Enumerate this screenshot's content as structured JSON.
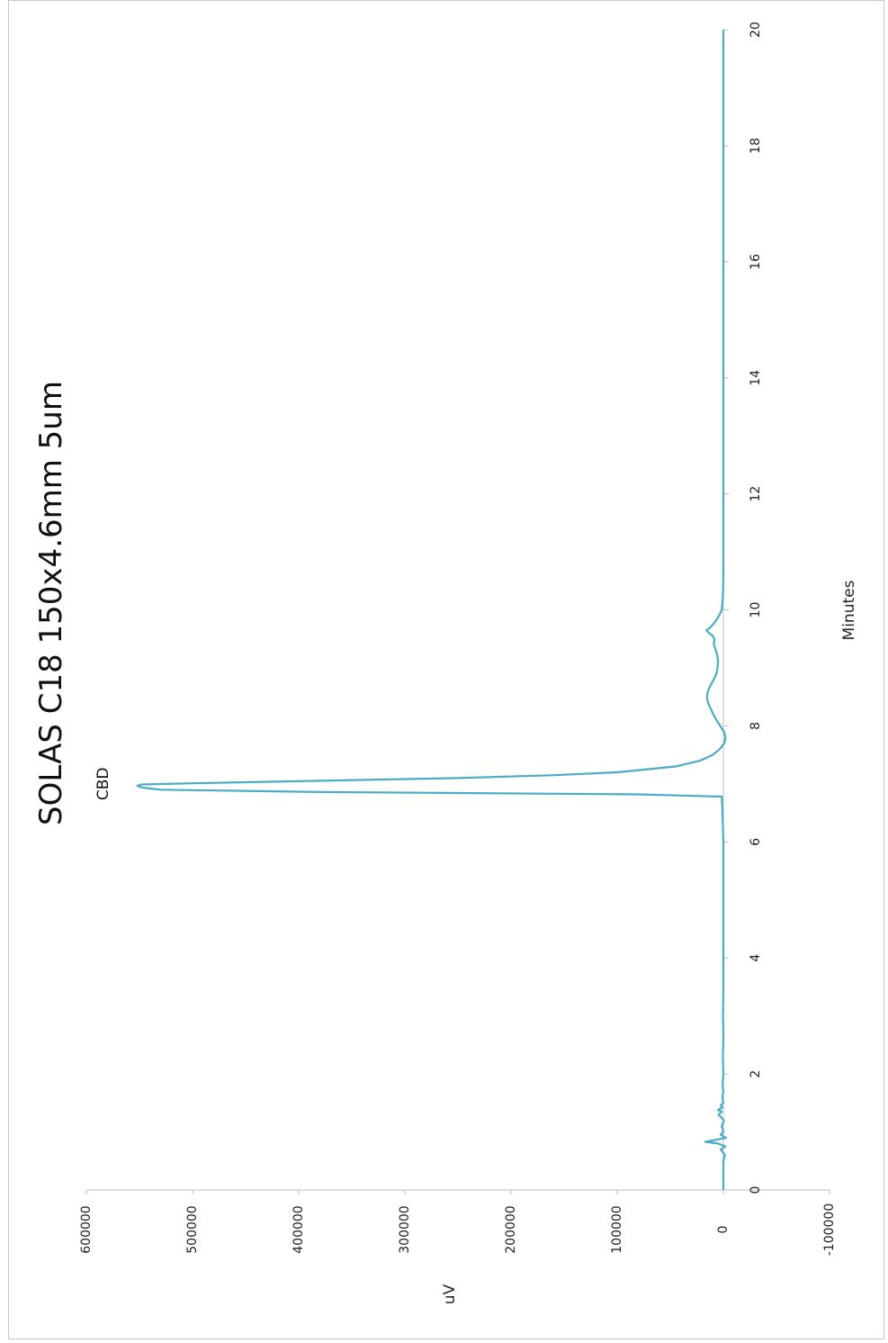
{
  "chart_data": {
    "type": "line",
    "title": "SOLAS C18 150x4.6mm 5um",
    "xlabel": "Minutes",
    "ylabel": "uV",
    "xlim": [
      0,
      20
    ],
    "ylim": [
      -100000,
      600000
    ],
    "x_ticks": [
      "0",
      "2",
      "4",
      "6",
      "8",
      "10",
      "12",
      "14",
      "16",
      "18",
      "20"
    ],
    "y_ticks": [
      "-100000",
      "0",
      "100000",
      "200000",
      "300000",
      "400000",
      "500000",
      "600000"
    ],
    "orientation": "rotated 90 degrees counter-clockwise",
    "grid": false,
    "line_color": "#4bacc6",
    "zero_line_color": "#bfbfbf",
    "annotations": [
      {
        "text": "CBD",
        "x": 6.97,
        "y": 550000
      }
    ],
    "series": [
      {
        "x": [
          0,
          0.5,
          0.6,
          0.7,
          0.75,
          0.8,
          0.83,
          0.86,
          0.9,
          0.95,
          1.0,
          1.1,
          1.2,
          1.3,
          1.35,
          1.38,
          1.42,
          1.46,
          1.5,
          1.6,
          1.7,
          1.8,
          2.0,
          2.3,
          2.6,
          3.0,
          3.5,
          4.0,
          4.5,
          5.0,
          5.5,
          6.0,
          6.3,
          6.6,
          6.78,
          6.82,
          6.86,
          6.9,
          6.93,
          6.95,
          6.97,
          6.99,
          7.01,
          7.05,
          7.1,
          7.15,
          7.2,
          7.3,
          7.4,
          7.5,
          7.6,
          7.7,
          7.8,
          7.9,
          8.0,
          8.1,
          8.2,
          8.3,
          8.4,
          8.5,
          8.6,
          8.7,
          8.8,
          8.9,
          9.0,
          9.1,
          9.2,
          9.3,
          9.4,
          9.5,
          9.55,
          9.6,
          9.65,
          9.7,
          9.8,
          9.9,
          10.0,
          10.2,
          10.5,
          11.0,
          12.0,
          14.0,
          16.0,
          18.0,
          20.0
        ],
        "y": [
          0,
          0,
          -1500,
          2500,
          -2000,
          5000,
          17000,
          8000,
          -2500,
          2500,
          0,
          1500,
          -500,
          4500,
          1500,
          5000,
          1000,
          2500,
          0,
          1000,
          0,
          800,
          0,
          500,
          0,
          300,
          0,
          0,
          0,
          0,
          0,
          0,
          500,
          1000,
          1500,
          80000,
          380000,
          530000,
          545000,
          550000,
          552000,
          548000,
          500000,
          390000,
          250000,
          160000,
          100000,
          45000,
          22000,
          10000,
          3500,
          -1000,
          -2000,
          -500,
          3000,
          6500,
          9500,
          12000,
          14500,
          15500,
          14500,
          12000,
          9000,
          6500,
          5500,
          5000,
          5500,
          7000,
          9000,
          8500,
          10000,
          13500,
          16000,
          12000,
          7500,
          4000,
          1500,
          500,
          100,
          0,
          0,
          0,
          0,
          0,
          0
        ]
      }
    ]
  }
}
